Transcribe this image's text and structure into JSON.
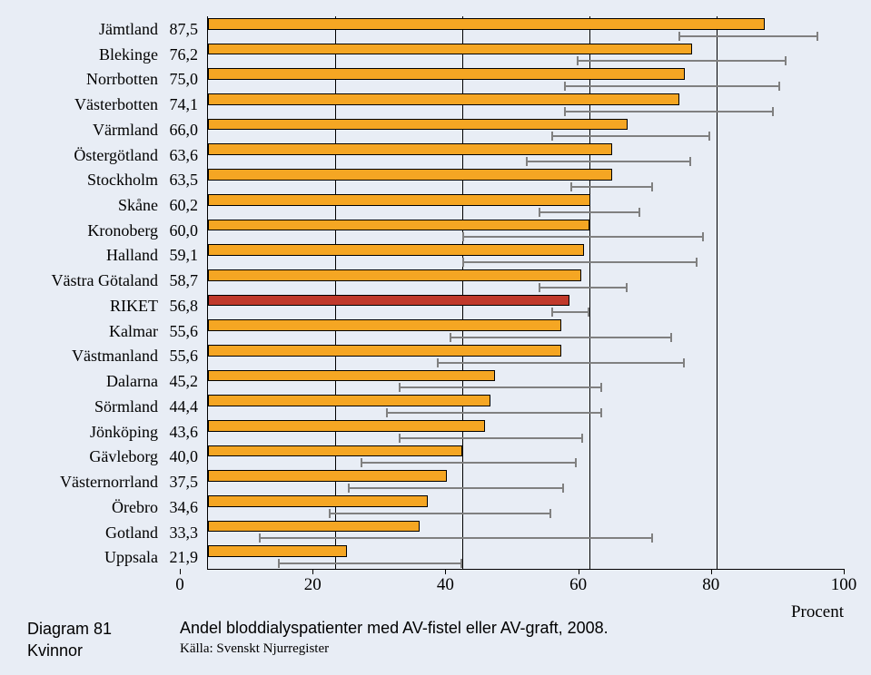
{
  "chart": {
    "type": "bar",
    "xlim": [
      0,
      100
    ],
    "xtick_step": 20,
    "xticks": [
      0,
      20,
      40,
      60,
      80,
      100
    ],
    "xlabel": "Procent",
    "bar_fill": "#f5a623",
    "bar_highlight_fill": "#c0392b",
    "bar_stroke": "#000000",
    "whisker_color": "#808080",
    "gridline_color": "#000000",
    "background_color": "#e8edf5",
    "label_font": "Georgia",
    "label_fontsize": 18,
    "axis_fontsize": 19,
    "rows": [
      {
        "label": "Jämtland",
        "value": 87.5,
        "display": "87,5",
        "ci_lo": 74,
        "ci_hi": 96
      },
      {
        "label": "Blekinge",
        "value": 76.2,
        "display": "76,2",
        "ci_lo": 58,
        "ci_hi": 91
      },
      {
        "label": "Norrbotten",
        "value": 75.0,
        "display": "75,0",
        "ci_lo": 56,
        "ci_hi": 90
      },
      {
        "label": "Västerbotten",
        "value": 74.1,
        "display": "74,1",
        "ci_lo": 56,
        "ci_hi": 89
      },
      {
        "label": "Värmland",
        "value": 66.0,
        "display": "66,0",
        "ci_lo": 54,
        "ci_hi": 79
      },
      {
        "label": "Östergötland",
        "value": 63.6,
        "display": "63,6",
        "ci_lo": 50,
        "ci_hi": 76
      },
      {
        "label": "Stockholm",
        "value": 63.5,
        "display": "63,5",
        "ci_lo": 57,
        "ci_hi": 70
      },
      {
        "label": "Skåne",
        "value": 60.2,
        "display": "60,2",
        "ci_lo": 52,
        "ci_hi": 68
      },
      {
        "label": "Kronoberg",
        "value": 60.0,
        "display": "60,0",
        "ci_lo": 40,
        "ci_hi": 78
      },
      {
        "label": "Halland",
        "value": 59.1,
        "display": "59,1",
        "ci_lo": 40,
        "ci_hi": 77
      },
      {
        "label": "Västra Götaland",
        "value": 58.7,
        "display": "58,7",
        "ci_lo": 52,
        "ci_hi": 66
      },
      {
        "label": "RIKET",
        "value": 56.8,
        "display": "56,8",
        "ci_lo": 54,
        "ci_hi": 60,
        "highlight": true
      },
      {
        "label": "Kalmar",
        "value": 55.6,
        "display": "55,6",
        "ci_lo": 38,
        "ci_hi": 73
      },
      {
        "label": "Västmanland",
        "value": 55.6,
        "display": "55,6",
        "ci_lo": 36,
        "ci_hi": 75
      },
      {
        "label": "Dalarna",
        "value": 45.2,
        "display": "45,2",
        "ci_lo": 30,
        "ci_hi": 62
      },
      {
        "label": "Sörmland",
        "value": 44.4,
        "display": "44,4",
        "ci_lo": 28,
        "ci_hi": 62
      },
      {
        "label": "Jönköping",
        "value": 43.6,
        "display": "43,6",
        "ci_lo": 30,
        "ci_hi": 59
      },
      {
        "label": "Gävleborg",
        "value": 40.0,
        "display": "40,0",
        "ci_lo": 24,
        "ci_hi": 58
      },
      {
        "label": "Västernorrland",
        "value": 37.5,
        "display": "37,5",
        "ci_lo": 22,
        "ci_hi": 56
      },
      {
        "label": "Örebro",
        "value": 34.6,
        "display": "34,6",
        "ci_lo": 19,
        "ci_hi": 54
      },
      {
        "label": "Gotland",
        "value": 33.3,
        "display": "33,3",
        "ci_lo": 8,
        "ci_hi": 70
      },
      {
        "label": "Uppsala",
        "value": 21.9,
        "display": "21,9",
        "ci_lo": 11,
        "ci_hi": 40
      }
    ]
  },
  "caption": {
    "diagram_no": "Diagram 81",
    "subgroup": "Kvinnor",
    "title": "Andel bloddialyspatienter med AV-fistel eller AV-graft, 2008.",
    "source": "Källa: Svenskt Njurregister"
  }
}
